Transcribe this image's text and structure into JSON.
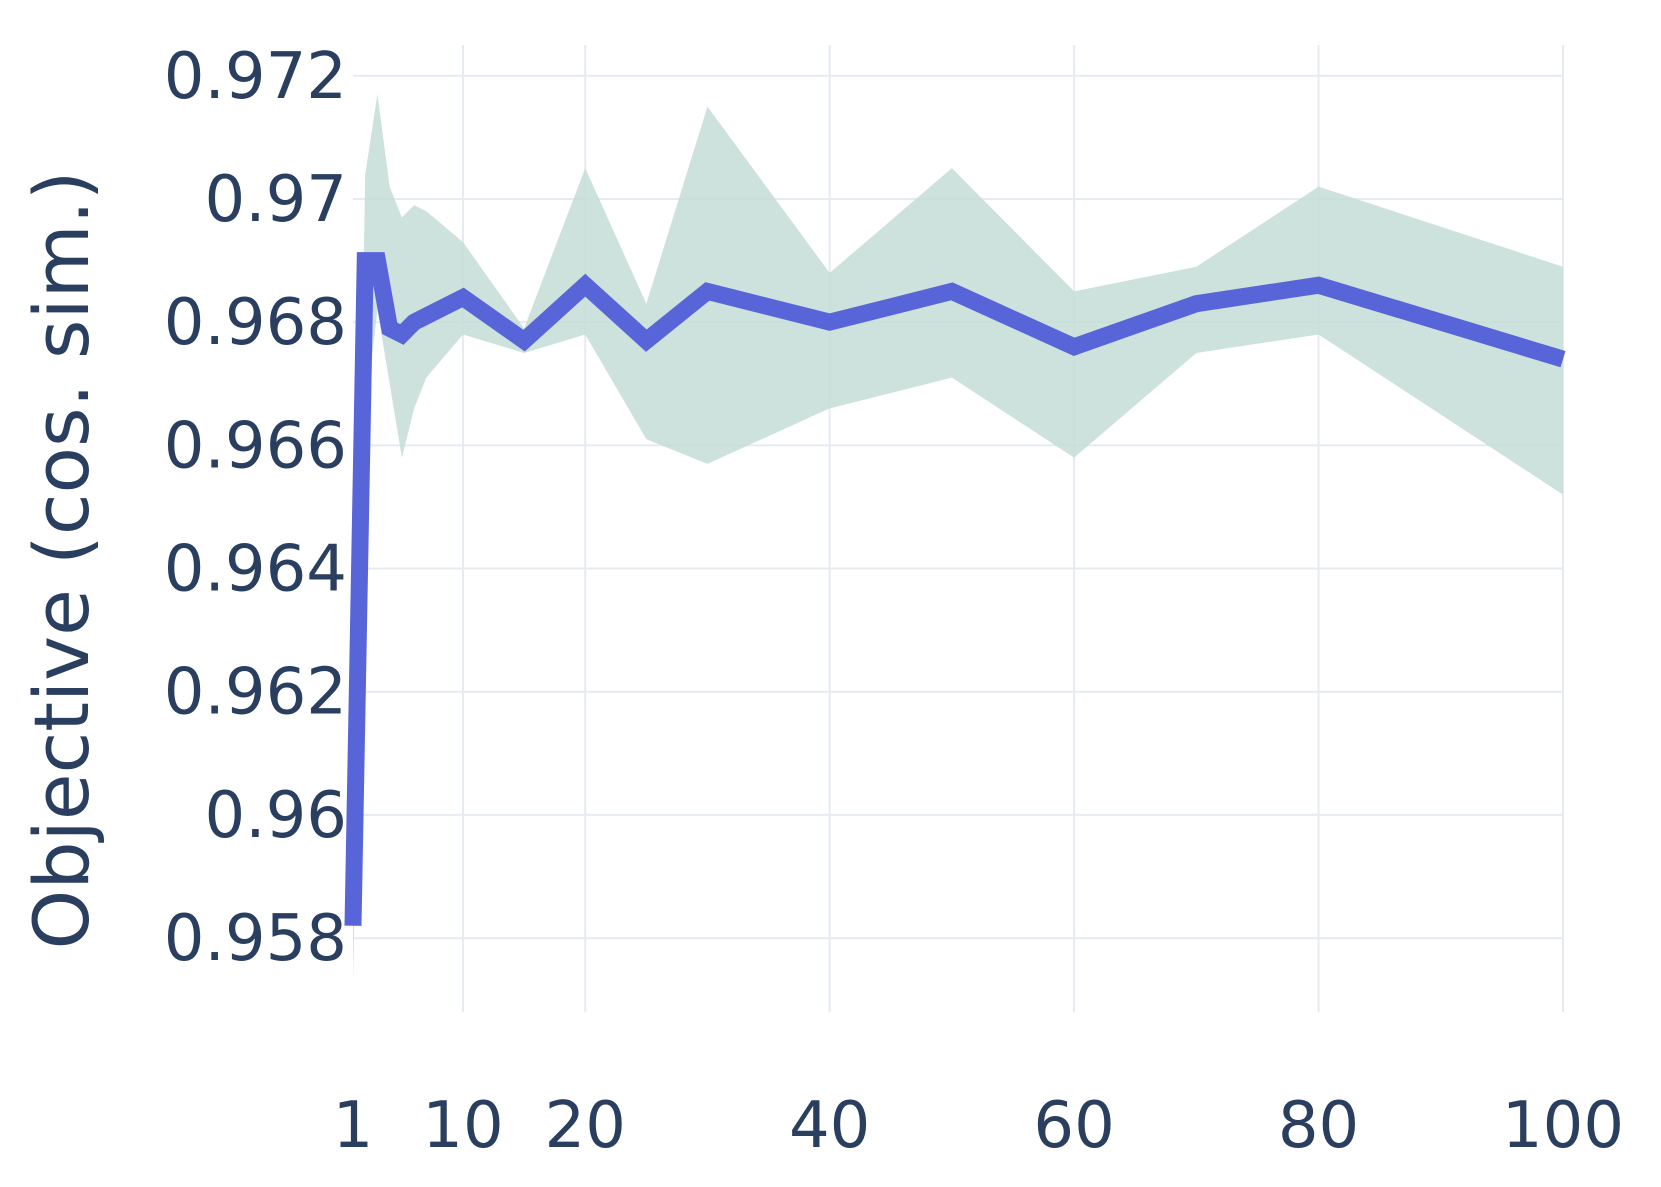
{
  "chart_data": {
    "type": "line",
    "title": "",
    "xlabel": "",
    "ylabel": "Objective (cos. sim.)",
    "xlim": [
      1,
      100
    ],
    "ylim": [
      0.9568,
      0.9725
    ],
    "x_ticks": [
      1,
      10,
      20,
      40,
      60,
      80,
      100
    ],
    "x_tick_labels": [
      "1",
      "10",
      "20",
      "40",
      "60",
      "80",
      "100"
    ],
    "y_ticks": [
      0.958,
      0.96,
      0.962,
      0.964,
      0.966,
      0.968,
      0.97,
      0.972
    ],
    "y_tick_labels": [
      "0.958",
      "0.96",
      "0.962",
      "0.964",
      "0.966",
      "0.968",
      "0.97",
      "0.972"
    ],
    "grid": true,
    "legend": "none",
    "colors": {
      "line": "#5865d8",
      "band": "#c4ddd6",
      "grid": "#e6ebf2",
      "text": "#2a3f5f"
    },
    "series": [
      {
        "x": [
          1,
          2,
          3,
          4,
          5,
          6,
          7,
          10,
          15,
          20,
          25,
          30,
          40,
          50,
          60,
          70,
          80,
          100
        ],
        "y": [
          0.9582,
          0.969,
          0.969,
          0.9679,
          0.9678,
          0.968,
          0.9681,
          0.9684,
          0.9677,
          0.9686,
          0.9677,
          0.9685,
          0.968,
          0.9685,
          0.9676,
          0.9683,
          0.9686,
          0.9674
        ],
        "lower": [
          0.9573,
          0.9665,
          0.9682,
          0.967,
          0.9658,
          0.9666,
          0.9671,
          0.9678,
          0.9675,
          0.9678,
          0.9661,
          0.9657,
          0.9666,
          0.9671,
          0.9658,
          0.9675,
          0.9678,
          0.9652
        ],
        "upper": [
          0.9592,
          0.9704,
          0.9717,
          0.9702,
          0.9697,
          0.9699,
          0.9698,
          0.9693,
          0.9679,
          0.9705,
          0.9683,
          0.9715,
          0.9688,
          0.9705,
          0.9685,
          0.9689,
          0.9702,
          0.9689
        ]
      }
    ]
  }
}
